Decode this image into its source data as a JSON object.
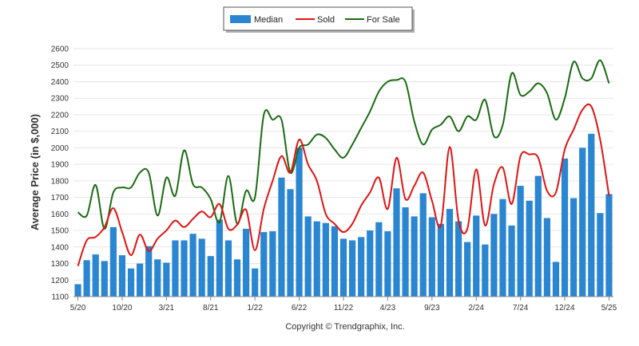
{
  "chart_data": {
    "type": "bar",
    "ylabel": "Average Price (in $,000)",
    "credit": "Copyright © Trendgraphix, Inc.",
    "ylim": [
      1100,
      2600
    ],
    "yticks": [
      1100,
      1200,
      1300,
      1400,
      1500,
      1600,
      1700,
      1800,
      1900,
      2000,
      2100,
      2200,
      2300,
      2400,
      2500,
      2600
    ],
    "xtick_labels": [
      {
        "index": 0,
        "label": "5/20"
      },
      {
        "index": 5,
        "label": "10/20"
      },
      {
        "index": 10,
        "label": "3/21"
      },
      {
        "index": 15,
        "label": "8/21"
      },
      {
        "index": 20,
        "label": "1/22"
      },
      {
        "index": 25,
        "label": "6/22"
      },
      {
        "index": 30,
        "label": "11/22"
      },
      {
        "index": 35,
        "label": "4/23"
      },
      {
        "index": 40,
        "label": "9/23"
      },
      {
        "index": 45,
        "label": "2/24"
      },
      {
        "index": 50,
        "label": "7/24"
      },
      {
        "index": 55,
        "label": "12/24"
      },
      {
        "index": 60,
        "label": "5/25"
      }
    ],
    "grid": true,
    "legend_position": "top-center",
    "series": [
      {
        "name": "Median",
        "type": "bar",
        "color": "#2a86d1",
        "values": [
          1175,
          1320,
          1355,
          1315,
          1520,
          1350,
          1270,
          1300,
          1405,
          1325,
          1305,
          1440,
          1440,
          1480,
          1450,
          1345,
          1565,
          1440,
          1325,
          1510,
          1270,
          1490,
          1495,
          1820,
          1750,
          2000,
          1585,
          1555,
          1545,
          1525,
          1450,
          1440,
          1460,
          1500,
          1550,
          1495,
          1755,
          1640,
          1585,
          1725,
          1580,
          1540,
          1630,
          1555,
          1430,
          1590,
          1415,
          1600,
          1690,
          1530,
          1770,
          1680,
          1830,
          1575,
          1310,
          1935,
          1695,
          2000,
          2085,
          1605,
          1720
        ]
      },
      {
        "name": "Sold",
        "type": "line",
        "color": "#e01414",
        "values": [
          1285,
          1440,
          1460,
          1520,
          1635,
          1490,
          1350,
          1475,
          1375,
          1450,
          1500,
          1560,
          1520,
          1570,
          1615,
          1580,
          1660,
          1510,
          1535,
          1625,
          1380,
          1630,
          1800,
          1950,
          1850,
          2050,
          1900,
          1800,
          1600,
          1540,
          1490,
          1540,
          1650,
          1730,
          1820,
          1630,
          1940,
          1690,
          1770,
          1850,
          1680,
          1530,
          2005,
          1560,
          1510,
          1870,
          1530,
          1780,
          1880,
          1660,
          1950,
          1960,
          1940,
          1740,
          1730,
          1990,
          2110,
          2230,
          2250,
          2050,
          1710
        ]
      },
      {
        "name": "For Sale",
        "type": "line",
        "color": "#1a6b13",
        "values": [
          1610,
          1590,
          1775,
          1510,
          1730,
          1760,
          1760,
          1850,
          1850,
          1590,
          1820,
          1710,
          1985,
          1780,
          1760,
          1690,
          1550,
          1830,
          1540,
          1740,
          1700,
          2200,
          2170,
          2170,
          1850,
          2000,
          2020,
          2080,
          2060,
          1990,
          1940,
          2020,
          2120,
          2220,
          2340,
          2400,
          2410,
          2400,
          2160,
          2020,
          2110,
          2140,
          2190,
          2100,
          2190,
          2170,
          2290,
          2070,
          2140,
          2450,
          2320,
          2340,
          2390,
          2330,
          2170,
          2300,
          2520,
          2420,
          2420,
          2530,
          2390
        ]
      }
    ]
  }
}
